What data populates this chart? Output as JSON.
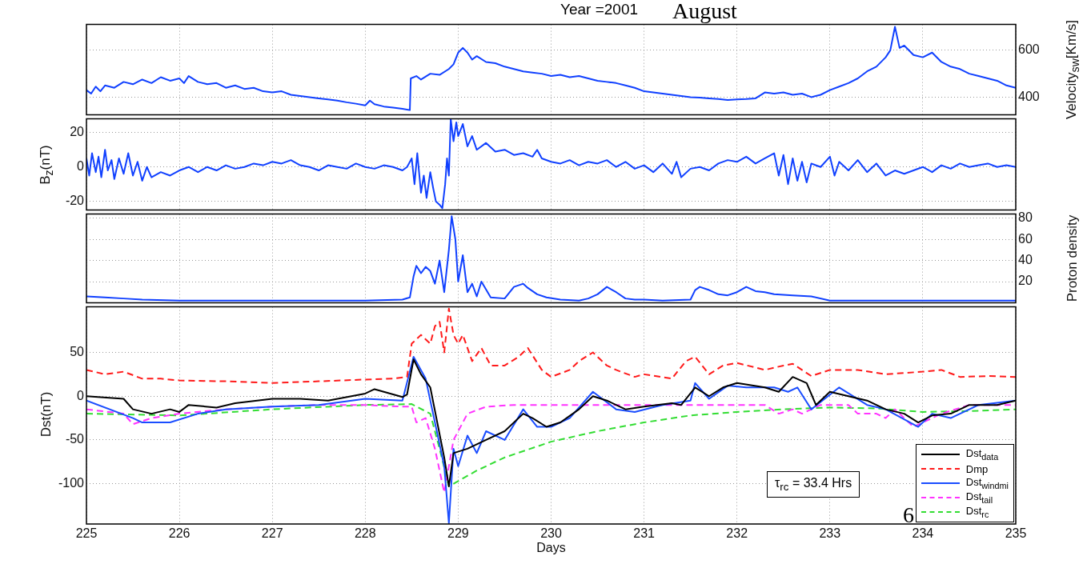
{
  "chart_data": [
    {
      "type": "line",
      "title": "Year =2001",
      "subtitle": "August",
      "y2label": "Velocity$_{sw}$[Km/s]",
      "xlim": [
        225,
        235
      ],
      "xticks": [
        225,
        226,
        227,
        228,
        229,
        230,
        231,
        232,
        233,
        234,
        235
      ],
      "y2lim": [
        325,
        710
      ],
      "y2ticks": [
        400,
        600
      ],
      "grid": true,
      "tick_labels": "y",
      "series": [
        {
          "color": "#1040ff",
          "axis": "y2",
          "x": [
            225.0,
            225.05,
            225.1,
            225.15,
            225.2,
            225.3,
            225.4,
            225.5,
            225.6,
            225.7,
            225.8,
            225.9,
            226.0,
            226.05,
            226.1,
            226.2,
            226.3,
            226.4,
            226.5,
            226.6,
            226.7,
            226.8,
            226.9,
            227.0,
            227.1,
            227.2,
            227.3,
            227.4,
            227.5,
            227.6,
            227.7,
            227.8,
            227.9,
            228.0,
            228.05,
            228.1,
            228.2,
            228.3,
            228.4,
            228.48,
            228.49,
            228.55,
            228.6,
            228.7,
            228.8,
            228.9,
            228.95,
            229.0,
            229.05,
            229.1,
            229.15,
            229.2,
            229.3,
            229.4,
            229.5,
            229.6,
            229.7,
            229.8,
            229.9,
            230.0,
            230.1,
            230.2,
            230.3,
            230.4,
            230.5,
            230.6,
            230.7,
            230.8,
            230.9,
            231.0,
            231.1,
            231.2,
            231.3,
            231.4,
            231.5,
            231.6,
            231.7,
            231.8,
            231.9,
            232.0,
            232.1,
            232.2,
            232.3,
            232.4,
            232.5,
            232.6,
            232.7,
            232.8,
            232.9,
            233.0,
            233.1,
            233.2,
            233.3,
            233.4,
            233.5,
            233.6,
            233.65,
            233.7,
            233.75,
            233.8,
            233.9,
            234.0,
            234.1,
            234.2,
            234.3,
            234.4,
            234.5,
            234.6,
            234.7,
            234.8,
            234.9,
            235.0
          ],
          "values": [
            430,
            415,
            445,
            425,
            450,
            440,
            465,
            455,
            475,
            460,
            485,
            470,
            480,
            460,
            490,
            465,
            455,
            460,
            440,
            450,
            435,
            440,
            425,
            420,
            425,
            410,
            405,
            400,
            395,
            390,
            385,
            378,
            372,
            365,
            385,
            370,
            360,
            355,
            350,
            345,
            480,
            490,
            475,
            500,
            495,
            520,
            540,
            590,
            610,
            590,
            560,
            575,
            550,
            545,
            530,
            520,
            510,
            505,
            500,
            490,
            495,
            485,
            490,
            480,
            470,
            465,
            460,
            450,
            440,
            425,
            420,
            415,
            410,
            405,
            400,
            398,
            395,
            392,
            388,
            390,
            392,
            395,
            420,
            415,
            420,
            410,
            415,
            400,
            410,
            430,
            445,
            460,
            480,
            510,
            530,
            570,
            600,
            700,
            610,
            620,
            580,
            570,
            590,
            550,
            530,
            520,
            500,
            490,
            480,
            470,
            450,
            440
          ]
        }
      ]
    },
    {
      "type": "line",
      "ylabel": "B$_{z}$(nT)",
      "xlim": [
        225,
        235
      ],
      "xticks": [
        225,
        226,
        227,
        228,
        229,
        230,
        231,
        232,
        233,
        234,
        235
      ],
      "ylim": [
        -25,
        28
      ],
      "yticks": [
        -20,
        0,
        20
      ],
      "grid": true,
      "tick_labels": "y",
      "series": [
        {
          "color": "#1040ff",
          "x": [
            225.0,
            225.03,
            225.06,
            225.1,
            225.13,
            225.16,
            225.2,
            225.23,
            225.27,
            225.3,
            225.35,
            225.4,
            225.45,
            225.5,
            225.55,
            225.6,
            225.65,
            225.7,
            225.8,
            225.9,
            226.0,
            226.1,
            226.2,
            226.3,
            226.4,
            226.5,
            226.6,
            226.7,
            226.8,
            226.9,
            227.0,
            227.1,
            227.2,
            227.3,
            227.4,
            227.5,
            227.6,
            227.7,
            227.8,
            227.9,
            228.0,
            228.1,
            228.2,
            228.3,
            228.4,
            228.45,
            228.5,
            228.53,
            228.56,
            228.6,
            228.63,
            228.66,
            228.7,
            228.73,
            228.76,
            228.8,
            228.83,
            228.86,
            228.88,
            228.9,
            228.92,
            228.95,
            228.98,
            229.0,
            229.05,
            229.1,
            229.15,
            229.2,
            229.3,
            229.4,
            229.5,
            229.6,
            229.7,
            229.8,
            229.85,
            229.9,
            230.0,
            230.1,
            230.2,
            230.3,
            230.4,
            230.5,
            230.6,
            230.7,
            230.8,
            230.9,
            231.0,
            231.1,
            231.2,
            231.3,
            231.35,
            231.4,
            231.5,
            231.6,
            231.7,
            231.8,
            231.9,
            232.0,
            232.1,
            232.2,
            232.3,
            232.4,
            232.45,
            232.5,
            232.55,
            232.6,
            232.65,
            232.7,
            232.75,
            232.8,
            232.9,
            233.0,
            233.05,
            233.1,
            233.2,
            233.3,
            233.4,
            233.5,
            233.6,
            233.7,
            233.8,
            233.9,
            234.0,
            234.1,
            234.2,
            234.3,
            234.4,
            234.5,
            234.6,
            234.7,
            234.8,
            234.9,
            235.0
          ],
          "values": [
            5,
            -5,
            8,
            -3,
            6,
            -6,
            10,
            -2,
            4,
            -7,
            5,
            -4,
            8,
            -5,
            3,
            -8,
            0,
            -6,
            -3,
            -5,
            -2,
            0,
            -3,
            0,
            -2,
            1,
            -1,
            0,
            2,
            1,
            3,
            2,
            4,
            1,
            0,
            -2,
            1,
            0,
            -1,
            2,
            0,
            -1,
            1,
            0,
            -2,
            0,
            5,
            -10,
            8,
            -15,
            -5,
            -18,
            -3,
            -12,
            -20,
            -22,
            -24,
            -10,
            5,
            -5,
            28,
            15,
            26,
            18,
            25,
            12,
            18,
            10,
            14,
            9,
            10,
            7,
            8,
            6,
            10,
            5,
            3,
            2,
            4,
            1,
            3,
            2,
            4,
            0,
            3,
            -1,
            1,
            -3,
            2,
            -4,
            3,
            -6,
            -1,
            0,
            -2,
            2,
            4,
            3,
            6,
            2,
            5,
            8,
            -5,
            7,
            -10,
            5,
            -8,
            3,
            -9,
            2,
            0,
            6,
            -5,
            3,
            -2,
            4,
            -3,
            2,
            -5,
            -2,
            -4,
            -2,
            0,
            -3,
            1,
            -1,
            2,
            0,
            1,
            2,
            0,
            1,
            0
          ]
        }
      ]
    },
    {
      "type": "line",
      "y2label": "Proton density",
      "xlim": [
        225,
        235
      ],
      "xticks": [
        225,
        226,
        227,
        228,
        229,
        230,
        231,
        232,
        233,
        234,
        235
      ],
      "y2lim": [
        0,
        84
      ],
      "y2ticks": [
        20,
        40,
        60,
        80
      ],
      "grid": true,
      "tick_labels": "y",
      "series": [
        {
          "color": "#1040ff",
          "axis": "y2",
          "x": [
            225.0,
            225.2,
            225.4,
            225.6,
            226.0,
            226.5,
            227.0,
            227.5,
            228.0,
            228.4,
            228.48,
            228.52,
            228.55,
            228.6,
            228.65,
            228.7,
            228.75,
            228.8,
            228.85,
            228.9,
            228.93,
            228.97,
            229.0,
            229.05,
            229.1,
            229.15,
            229.2,
            229.25,
            229.35,
            229.5,
            229.6,
            229.7,
            229.75,
            229.85,
            229.95,
            230.1,
            230.3,
            230.4,
            230.5,
            230.6,
            230.7,
            230.8,
            230.9,
            231.0,
            231.2,
            231.5,
            231.55,
            231.6,
            231.7,
            231.8,
            231.9,
            232.0,
            232.1,
            232.2,
            232.3,
            232.4,
            232.6,
            232.8,
            233.0,
            233.2,
            233.5,
            234.0,
            234.5,
            235.0
          ],
          "values": [
            6,
            5,
            4,
            3,
            2,
            2,
            2,
            2,
            2,
            3,
            5,
            25,
            35,
            28,
            34,
            30,
            18,
            40,
            10,
            50,
            82,
            60,
            20,
            45,
            10,
            18,
            6,
            20,
            5,
            4,
            15,
            18,
            14,
            8,
            5,
            3,
            2,
            4,
            8,
            15,
            10,
            4,
            3,
            3,
            2,
            3,
            12,
            15,
            12,
            8,
            7,
            10,
            15,
            11,
            10,
            8,
            7,
            6,
            2,
            2,
            2,
            2,
            2,
            2
          ]
        }
      ]
    },
    {
      "type": "line",
      "xlabel": "Days",
      "ylabel": "Dst(nT)",
      "xlim": [
        225,
        235
      ],
      "xticks": [
        225,
        226,
        227,
        228,
        229,
        230,
        231,
        232,
        233,
        234,
        235
      ],
      "ylim": [
        -146,
        102
      ],
      "yticks": [
        -100,
        -50,
        0,
        50
      ],
      "grid": true,
      "legend": "bottom right",
      "annotations": [
        "τ$_{rc}$ = 33.4 Hrs",
        "6"
      ],
      "series": [
        {
          "name": "Dst$_{data}$",
          "color": "#000000",
          "line_style": "solid",
          "x": [
            225.0,
            225.4,
            225.5,
            225.7,
            225.9,
            226.0,
            226.1,
            226.4,
            226.6,
            227.0,
            227.3,
            227.6,
            228.0,
            228.1,
            228.3,
            228.4,
            228.45,
            228.52,
            228.6,
            228.7,
            228.85,
            228.9,
            228.95,
            229.1,
            229.3,
            229.5,
            229.7,
            229.8,
            229.95,
            230.1,
            230.3,
            230.45,
            230.6,
            230.8,
            231.0,
            231.3,
            231.4,
            231.55,
            231.7,
            231.85,
            232.0,
            232.3,
            232.45,
            232.6,
            232.75,
            232.85,
            233.0,
            233.2,
            233.4,
            233.6,
            233.8,
            233.95,
            234.1,
            234.3,
            234.5,
            234.8,
            235.0
          ],
          "values": [
            0,
            -3,
            -15,
            -20,
            -15,
            -18,
            -10,
            -13,
            -8,
            -3,
            -3,
            -5,
            3,
            8,
            2,
            -1,
            2,
            42,
            25,
            10,
            -70,
            -103,
            -65,
            -60,
            -50,
            -40,
            -20,
            -25,
            -35,
            -30,
            -15,
            0,
            -5,
            -15,
            -12,
            -8,
            -10,
            10,
            0,
            10,
            15,
            10,
            5,
            22,
            15,
            -10,
            5,
            0,
            -5,
            -15,
            -20,
            -30,
            -22,
            -20,
            -10,
            -10,
            -5
          ]
        },
        {
          "name": "Dmp",
          "color": "#ff1a1a",
          "line_style": "dashed",
          "x": [
            225.0,
            225.2,
            225.4,
            225.6,
            225.8,
            226.0,
            226.5,
            227.0,
            227.5,
            228.0,
            228.3,
            228.45,
            228.5,
            228.6,
            228.7,
            228.75,
            228.8,
            228.85,
            228.9,
            228.95,
            229.0,
            229.05,
            229.15,
            229.25,
            229.35,
            229.5,
            229.65,
            229.75,
            229.9,
            230.0,
            230.2,
            230.3,
            230.45,
            230.6,
            230.7,
            230.9,
            231.0,
            231.3,
            231.45,
            231.55,
            231.7,
            231.85,
            232.0,
            232.3,
            232.5,
            232.6,
            232.8,
            233.0,
            233.3,
            233.6,
            234.0,
            234.2,
            234.4,
            234.7,
            235.0
          ],
          "values": [
            30,
            25,
            28,
            20,
            20,
            18,
            17,
            15,
            17,
            19,
            20,
            22,
            60,
            70,
            60,
            80,
            85,
            50,
            100,
            70,
            60,
            70,
            40,
            55,
            35,
            35,
            45,
            55,
            30,
            22,
            30,
            40,
            50,
            35,
            30,
            22,
            25,
            20,
            40,
            45,
            25,
            35,
            38,
            30,
            35,
            37,
            23,
            30,
            30,
            25,
            28,
            30,
            22,
            23,
            22
          ]
        },
        {
          "name": "Dst$_{windmi}$",
          "color": "#1a4dff",
          "line_style": "solid",
          "x": [
            225.0,
            225.5,
            225.6,
            225.9,
            226.2,
            226.5,
            227.0,
            227.5,
            228.0,
            228.4,
            228.52,
            228.65,
            228.85,
            228.9,
            228.95,
            229.0,
            229.1,
            229.2,
            229.3,
            229.5,
            229.7,
            229.85,
            230.0,
            230.2,
            230.45,
            230.7,
            230.9,
            231.2,
            231.5,
            231.55,
            231.7,
            231.9,
            232.1,
            232.4,
            232.55,
            232.65,
            232.8,
            233.1,
            233.4,
            233.6,
            233.95,
            234.1,
            234.3,
            234.6,
            235.0
          ],
          "values": [
            -5,
            -25,
            -30,
            -30,
            -20,
            -15,
            -12,
            -10,
            -3,
            -5,
            45,
            20,
            -80,
            -145,
            -60,
            -80,
            -45,
            -65,
            -40,
            -50,
            -15,
            -35,
            -35,
            -25,
            5,
            -15,
            -18,
            -10,
            -5,
            15,
            -3,
            12,
            10,
            10,
            5,
            10,
            -15,
            10,
            -10,
            -15,
            -35,
            -20,
            -25,
            -10,
            -5
          ]
        },
        {
          "name": "Dst$_{tail}$",
          "color": "#ff33ff",
          "line_style": "dashed",
          "x": [
            225.0,
            225.4,
            225.5,
            225.7,
            226.0,
            226.5,
            227.0,
            227.5,
            228.0,
            228.4,
            228.5,
            228.55,
            228.65,
            228.75,
            228.85,
            228.95,
            229.1,
            229.3,
            229.6,
            232.3,
            232.45,
            232.6,
            232.7,
            232.9,
            233.2,
            233.3,
            233.5,
            233.6,
            233.7,
            233.9,
            234.2,
            234.5,
            235.0
          ],
          "values": [
            -15,
            -20,
            -32,
            -25,
            -20,
            -15,
            -12,
            -10,
            -10,
            -12,
            -12,
            -30,
            -25,
            -60,
            -110,
            -50,
            -20,
            -12,
            -10,
            -10,
            -20,
            -15,
            -20,
            -10,
            -10,
            -20,
            -20,
            -25,
            -15,
            -35,
            -20,
            -10,
            -10
          ]
        },
        {
          "name": "Dst$_{rc}$",
          "color": "#33dd33",
          "line_style": "dashed",
          "x": [
            225.0,
            226.0,
            227.0,
            228.0,
            228.5,
            228.7,
            228.8,
            228.9,
            229.2,
            229.5,
            230.0,
            230.5,
            231.0,
            231.5,
            232.0,
            232.5,
            233.0,
            233.5,
            234.0,
            234.5,
            235.0
          ],
          "values": [
            -20,
            -22,
            -15,
            -10,
            -9,
            -20,
            -60,
            -103,
            -85,
            -70,
            -52,
            -40,
            -30,
            -22,
            -18,
            -15,
            -13,
            -14,
            -18,
            -17,
            -15
          ]
        }
      ]
    }
  ]
}
